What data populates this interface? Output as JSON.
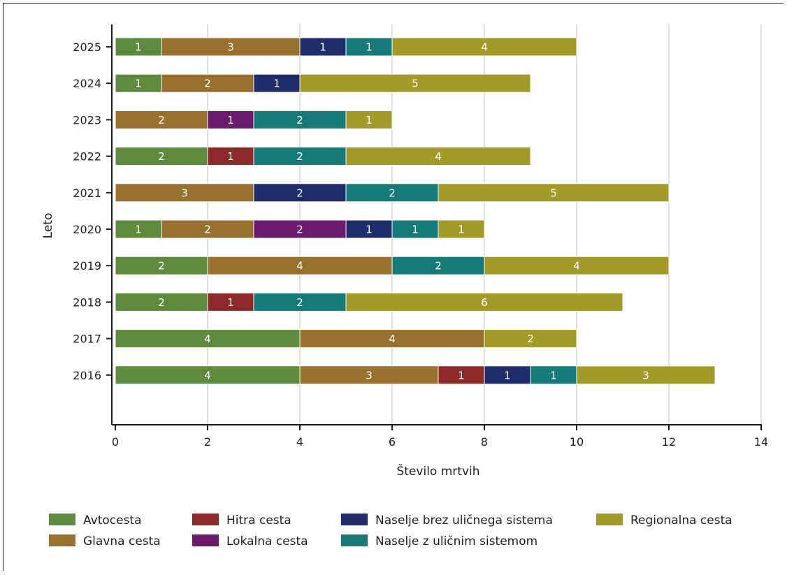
{
  "chart_data": {
    "type": "bar",
    "orientation": "horizontal",
    "stacked": true,
    "xlabel": "Število mrtvih",
    "ylabel": "Leto",
    "xlim": [
      0,
      14
    ],
    "xticks": [
      0,
      2,
      4,
      6,
      8,
      10,
      12,
      14
    ],
    "grid": "vertical",
    "legend_position": "bottom",
    "categories": [
      "2025",
      "2024",
      "2023",
      "2022",
      "2021",
      "2020",
      "2019",
      "2018",
      "2017",
      "2016"
    ],
    "series": [
      {
        "name": "Avtocesta",
        "color": "#5d8a3c",
        "values": [
          1,
          1,
          0,
          2,
          0,
          1,
          2,
          2,
          4,
          4
        ]
      },
      {
        "name": "Glavna cesta",
        "color": "#98712f",
        "values": [
          3,
          2,
          2,
          0,
          3,
          2,
          4,
          0,
          4,
          3
        ]
      },
      {
        "name": "Hitra cesta",
        "color": "#8c2a2a",
        "values": [
          0,
          0,
          0,
          1,
          0,
          0,
          0,
          1,
          0,
          1
        ]
      },
      {
        "name": "Lokalna cesta",
        "color": "#6b1a6e",
        "values": [
          0,
          0,
          1,
          0,
          0,
          2,
          0,
          0,
          0,
          0
        ]
      },
      {
        "name": "Naselje brez uličnega sistema",
        "color": "#1f2d6b",
        "values": [
          1,
          1,
          0,
          0,
          2,
          1,
          0,
          0,
          0,
          1
        ]
      },
      {
        "name": "Naselje z uličnim sistemom",
        "color": "#167a78",
        "values": [
          1,
          0,
          2,
          2,
          2,
          1,
          2,
          2,
          0,
          1
        ]
      },
      {
        "name": "Regionalna cesta",
        "color": "#a39a2a",
        "values": [
          4,
          5,
          1,
          4,
          5,
          1,
          4,
          6,
          2,
          3
        ]
      }
    ],
    "stack_order": {
      "2018": [
        "Avtocesta",
        "Hitra cesta",
        "Naselje z uličnim sistemom",
        "Regionalna cesta"
      ]
    }
  }
}
